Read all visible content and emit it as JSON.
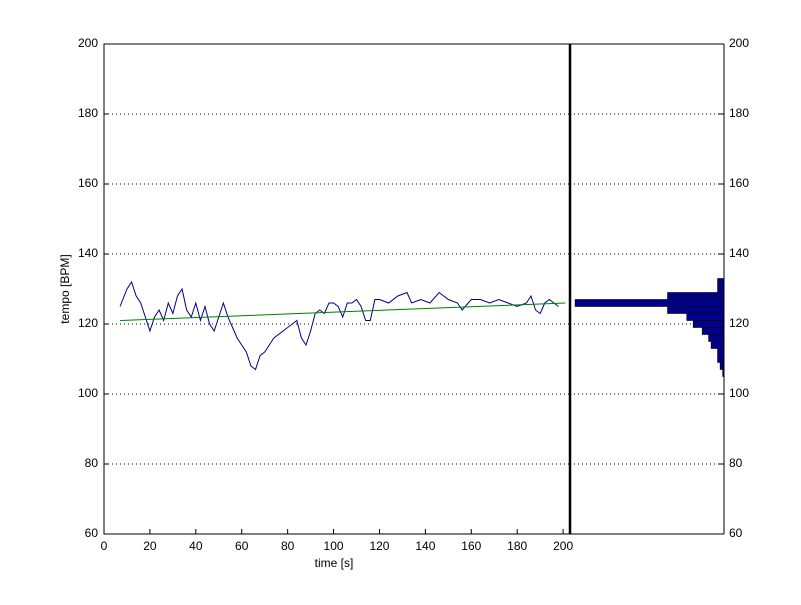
{
  "chart_data": [
    {
      "type": "line",
      "xlabel": "time [s]",
      "ylabel": "tempo [BPM]",
      "xlim": [
        0,
        203
      ],
      "ylim": [
        60,
        200
      ],
      "xticks": [
        0,
        20,
        40,
        60,
        80,
        100,
        120,
        140,
        160,
        180,
        200
      ],
      "yticks": [
        60,
        80,
        100,
        120,
        140,
        160,
        180,
        200
      ],
      "grid": true,
      "series": [
        {
          "color": "#00008b",
          "x": [
            7,
            10,
            12,
            14,
            16,
            18,
            20,
            22,
            24,
            26,
            28,
            30,
            32,
            34,
            36,
            38,
            40,
            42,
            44,
            46,
            48,
            50,
            52,
            54,
            56,
            58,
            60,
            62,
            64,
            66,
            68,
            70,
            72,
            74,
            76,
            78,
            80,
            82,
            84,
            86,
            88,
            90,
            92,
            94,
            96,
            98,
            100,
            102,
            104,
            106,
            108,
            110,
            112,
            114,
            116,
            118,
            120,
            124,
            128,
            132,
            134,
            138,
            142,
            146,
            150,
            154,
            156,
            160,
            164,
            168,
            172,
            176,
            180,
            184,
            186,
            188,
            190,
            192,
            194,
            196,
            198
          ],
          "values": [
            125,
            130,
            132,
            128,
            126,
            122,
            118,
            122,
            124,
            121,
            126,
            123,
            128,
            130,
            124,
            122,
            126,
            121,
            125,
            120,
            118,
            122,
            126,
            122,
            119,
            116,
            114,
            112,
            108,
            107,
            111,
            112,
            114,
            116,
            117,
            118,
            119,
            120,
            121,
            116,
            114,
            118,
            123,
            124,
            123,
            126,
            126,
            125,
            122,
            126,
            126,
            127,
            125,
            121,
            121,
            127,
            127,
            126,
            128,
            129,
            126,
            127,
            126,
            129,
            127,
            126,
            124,
            127,
            127,
            126,
            127,
            126,
            125,
            126,
            128,
            124,
            123,
            126,
            127,
            126,
            125
          ]
        },
        {
          "color": "#008000",
          "x": [
            7,
            201
          ],
          "values": [
            121,
            126
          ]
        }
      ]
    },
    {
      "type": "histogram",
      "orientation": "horizontal",
      "color": "#00008b",
      "xlim": [
        0,
        120
      ],
      "ylim": [
        60,
        200
      ],
      "yticks": [
        60,
        80,
        100,
        120,
        140,
        160,
        180,
        200
      ],
      "grid": true,
      "bins": [
        105,
        107,
        109,
        111,
        113,
        115,
        117,
        119,
        121,
        123,
        125,
        127,
        129,
        131,
        133
      ],
      "values": [
        1,
        3,
        5,
        5,
        10,
        12,
        17,
        24,
        29,
        44,
        116,
        44,
        5,
        5
      ]
    }
  ]
}
